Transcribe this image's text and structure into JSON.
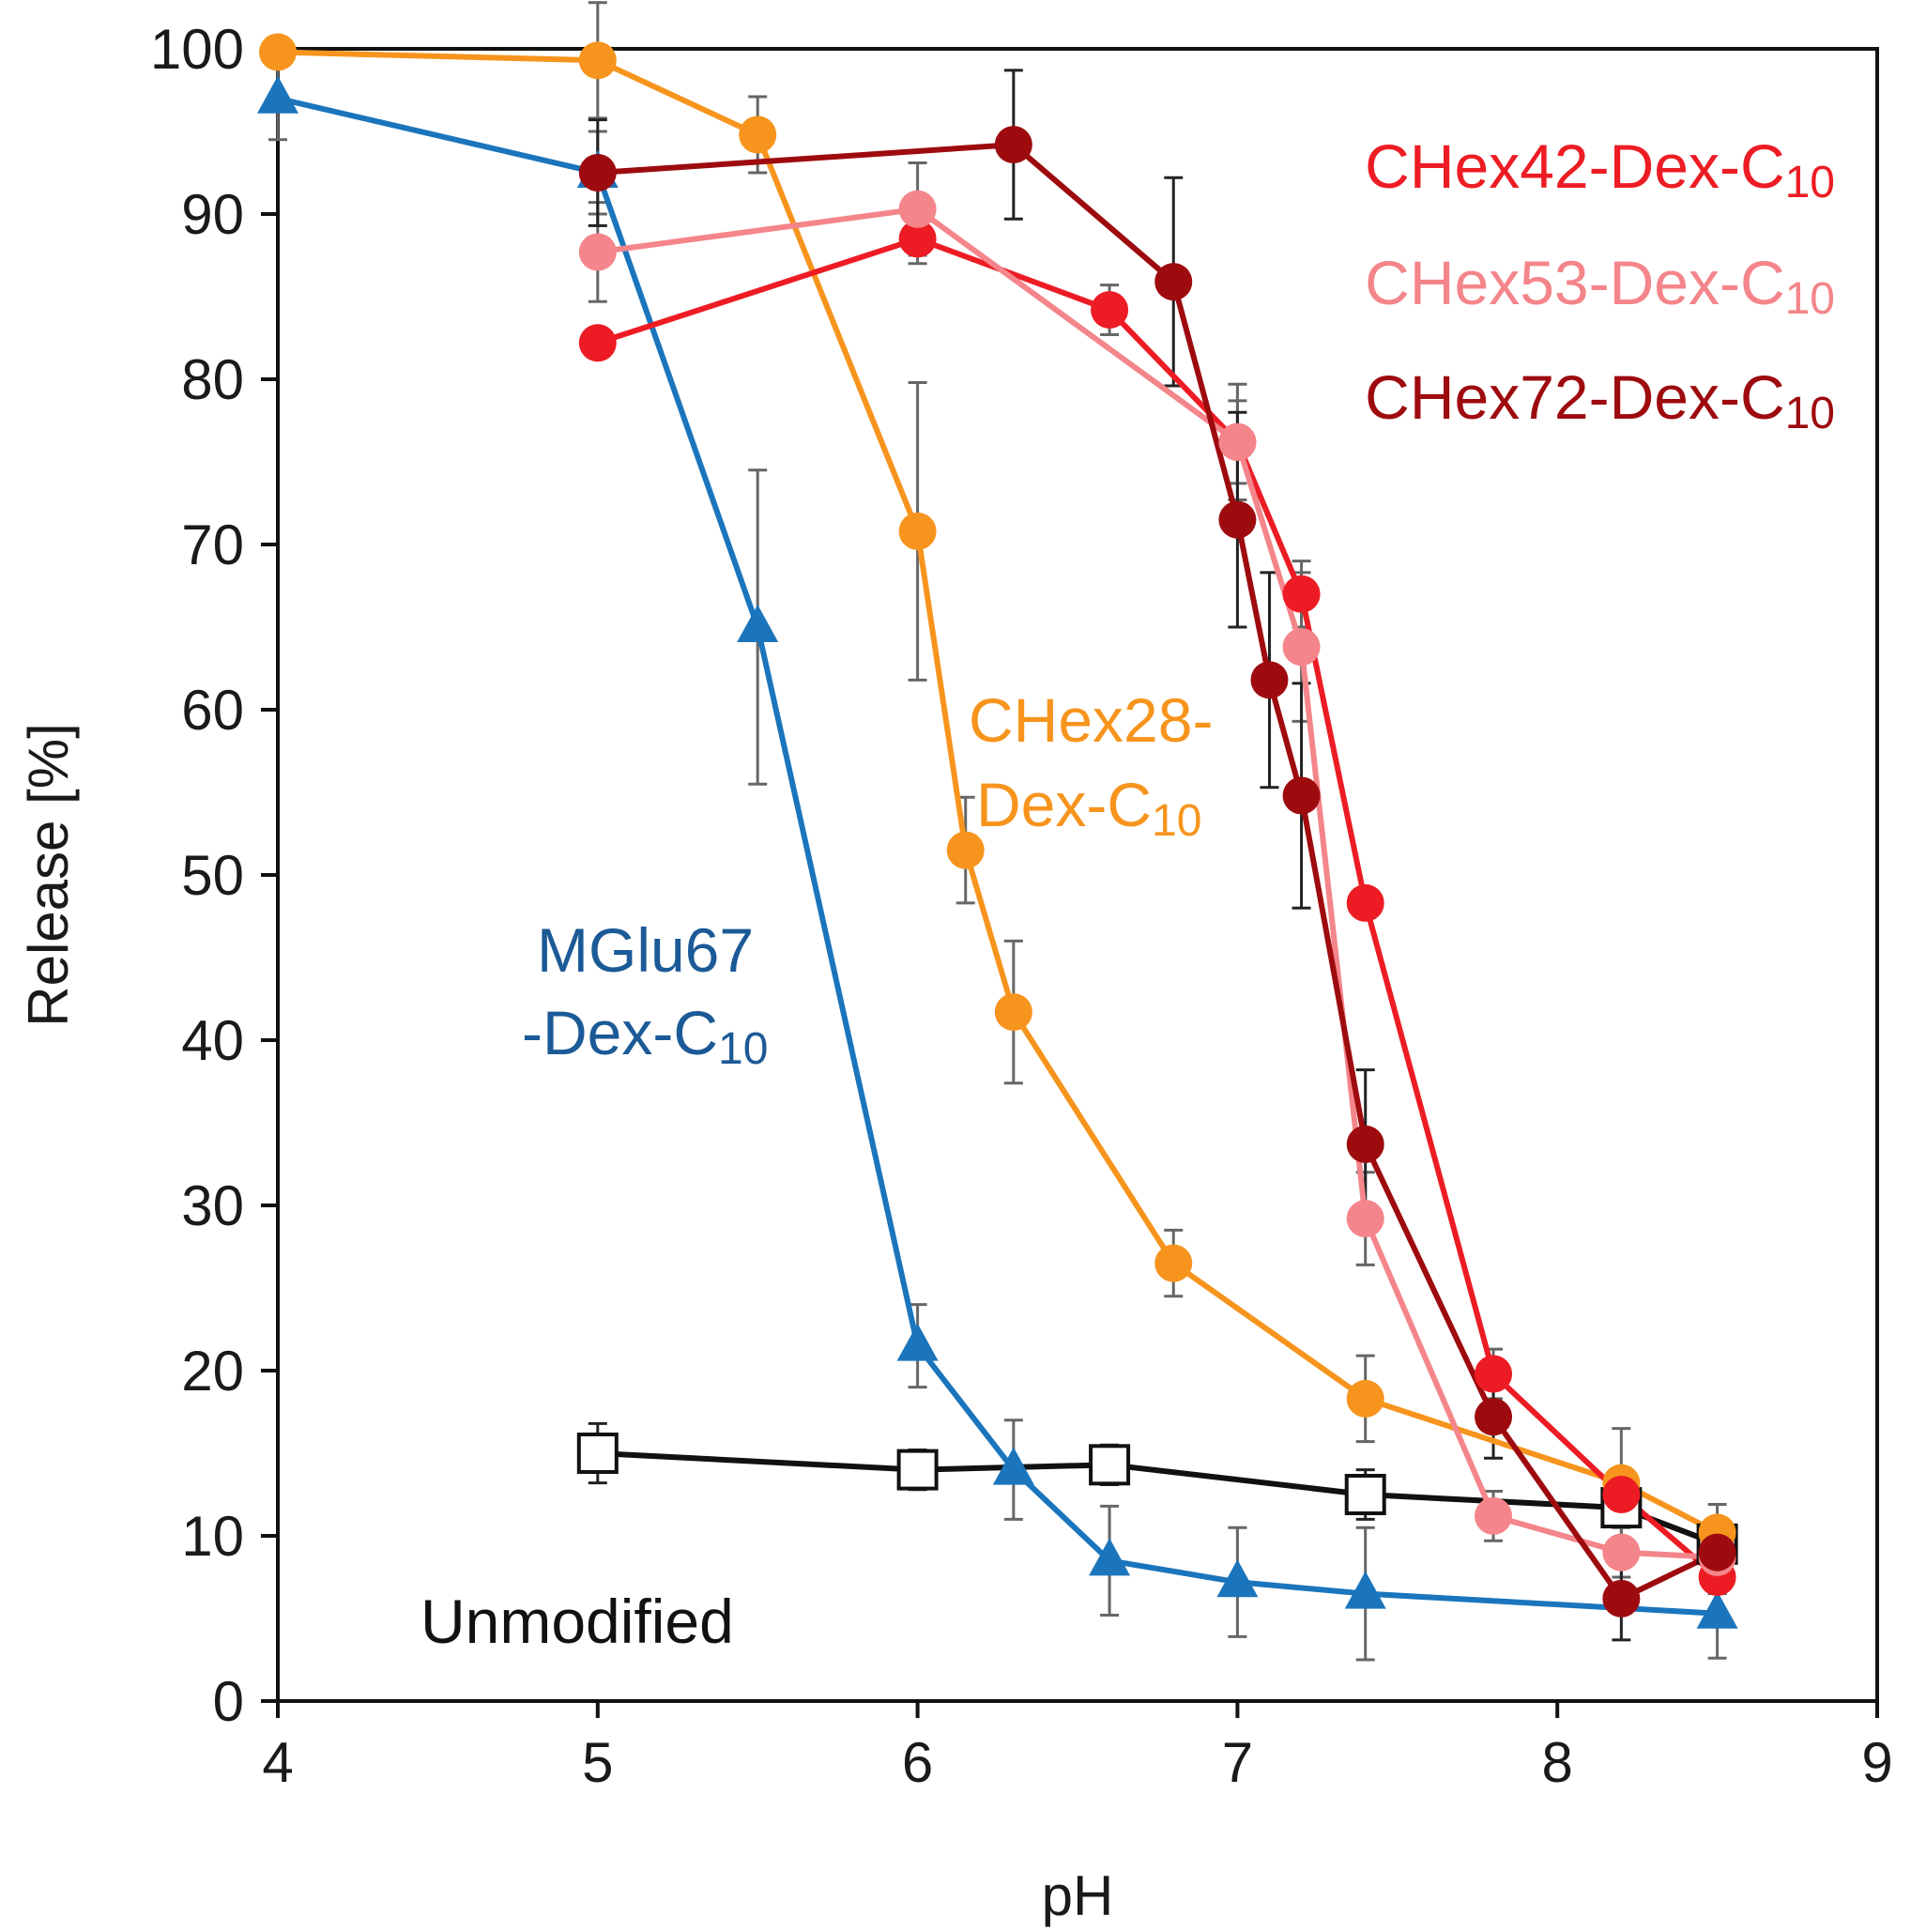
{
  "chart_data": {
    "type": "line",
    "title": "",
    "xlabel": "pH",
    "ylabel": "Release [%]",
    "xlim": [
      4,
      9
    ],
    "ylim": [
      0,
      100
    ],
    "x_ticks": [
      4,
      5,
      6,
      7,
      8,
      9
    ],
    "y_ticks": [
      0,
      10,
      20,
      30,
      40,
      50,
      60,
      70,
      80,
      90,
      100
    ],
    "grid": false,
    "series": [
      {
        "name": "Unmodified",
        "color": "#111111",
        "marker": "open-square",
        "points": [
          {
            "x": 5.0,
            "y": 15.0,
            "err": 1.8
          },
          {
            "x": 6.0,
            "y": 14.0,
            "err": 1.2
          },
          {
            "x": 6.6,
            "y": 14.3,
            "err": 1.2
          },
          {
            "x": 7.4,
            "y": 12.5,
            "err": 1.5
          },
          {
            "x": 8.2,
            "y": 11.7,
            "err": 1.0
          },
          {
            "x": 8.5,
            "y": 9.5,
            "err": 1.0
          }
        ]
      },
      {
        "name": "MGlu67-Dex-C10",
        "color": "#1b75bc",
        "marker": "triangle",
        "points": [
          {
            "x": 4.0,
            "y": 97.0,
            "err": 2.5
          },
          {
            "x": 5.0,
            "y": 92.5,
            "err": 2.5
          },
          {
            "x": 5.5,
            "y": 65.0,
            "err": 9.5
          },
          {
            "x": 6.0,
            "y": 21.5,
            "err": 2.5
          },
          {
            "x": 6.3,
            "y": 14.0,
            "err": 3.0
          },
          {
            "x": 6.6,
            "y": 8.5,
            "err": 3.3
          },
          {
            "x": 7.0,
            "y": 7.2,
            "err": 3.3
          },
          {
            "x": 7.4,
            "y": 6.5,
            "err": 4.0
          },
          {
            "x": 8.5,
            "y": 5.3,
            "err": 2.7
          }
        ]
      },
      {
        "name": "CHex28-Dex-C10",
        "color": "#f7941d",
        "marker": "circle",
        "points": [
          {
            "x": 4.0,
            "y": 99.8,
            "err": 0.0
          },
          {
            "x": 5.0,
            "y": 99.3,
            "err": 3.5
          },
          {
            "x": 5.5,
            "y": 94.8,
            "err": 2.3
          },
          {
            "x": 6.0,
            "y": 70.8,
            "err": 9.0
          },
          {
            "x": 6.15,
            "y": 51.5,
            "err": 3.2
          },
          {
            "x": 6.3,
            "y": 41.7,
            "err": 4.3
          },
          {
            "x": 6.8,
            "y": 26.5,
            "err": 2.0
          },
          {
            "x": 7.4,
            "y": 18.3,
            "err": 2.6
          },
          {
            "x": 8.2,
            "y": 13.2,
            "err": 3.3
          },
          {
            "x": 8.5,
            "y": 10.2,
            "err": 1.7
          }
        ]
      },
      {
        "name": "CHex42-Dex-C10",
        "color": "#ed1c24",
        "marker": "circle",
        "points": [
          {
            "x": 5.0,
            "y": 82.2,
            "err": 0.0
          },
          {
            "x": 6.0,
            "y": 88.5,
            "err": 1.5
          },
          {
            "x": 6.6,
            "y": 84.2,
            "err": 1.5
          },
          {
            "x": 7.0,
            "y": 76.2,
            "err": 2.5
          },
          {
            "x": 7.2,
            "y": 67.0,
            "err": 2.0
          },
          {
            "x": 7.4,
            "y": 48.3,
            "err": 0.0
          },
          {
            "x": 7.8,
            "y": 19.8,
            "err": 1.5
          },
          {
            "x": 8.2,
            "y": 12.5,
            "err": 1.5
          },
          {
            "x": 8.5,
            "y": 7.5,
            "err": 1.0
          }
        ]
      },
      {
        "name": "CHex53-Dex-C10",
        "color": "#f4858a",
        "marker": "circle",
        "points": [
          {
            "x": 5.0,
            "y": 87.7,
            "err": 3.0
          },
          {
            "x": 6.0,
            "y": 90.3,
            "err": 2.8
          },
          {
            "x": 7.0,
            "y": 76.2,
            "err": 3.5
          },
          {
            "x": 7.2,
            "y": 63.8,
            "err": 4.5
          },
          {
            "x": 7.4,
            "y": 29.2,
            "err": 2.8
          },
          {
            "x": 7.8,
            "y": 11.2,
            "err": 1.5
          },
          {
            "x": 8.2,
            "y": 9.0,
            "err": 1.5
          },
          {
            "x": 8.5,
            "y": 8.7,
            "err": 1.5
          }
        ]
      },
      {
        "name": "CHex72-Dex-C10",
        "color": "#9e0b0f",
        "marker": "circle",
        "points": [
          {
            "x": 5.0,
            "y": 92.5,
            "err": 3.2
          },
          {
            "x": 6.3,
            "y": 94.2,
            "err": 4.5
          },
          {
            "x": 6.8,
            "y": 85.9,
            "err": 6.3
          },
          {
            "x": 7.0,
            "y": 71.5,
            "err": 6.5
          },
          {
            "x": 7.1,
            "y": 61.8,
            "err": 6.5
          },
          {
            "x": 7.2,
            "y": 54.8,
            "err": 6.8
          },
          {
            "x": 7.4,
            "y": 33.7,
            "err": 4.5
          },
          {
            "x": 7.8,
            "y": 17.2,
            "err": 2.5
          },
          {
            "x": 8.2,
            "y": 6.2,
            "err": 2.5
          },
          {
            "x": 8.5,
            "y": 9.0,
            "err": 1.5
          }
        ]
      }
    ],
    "annotations": [
      {
        "text": "CHex42-Dex-C",
        "sub": "10",
        "color": "#ed1c24"
      },
      {
        "text": "CHex53-Dex-C",
        "sub": "10",
        "color": "#f4858a"
      },
      {
        "text": "CHex72-Dex-C",
        "sub": "10",
        "color": "#9e0b0f"
      },
      {
        "text": "CHex28-",
        "color": "#f7941d"
      },
      {
        "text": "Dex-C",
        "sub": "10",
        "color": "#f7941d"
      },
      {
        "text": "MGlu67",
        "color": "#1b5a96"
      },
      {
        "text": "-Dex-C",
        "sub": "10",
        "color": "#1b5a96"
      },
      {
        "text": "Unmodified",
        "color": "#111111"
      }
    ]
  }
}
